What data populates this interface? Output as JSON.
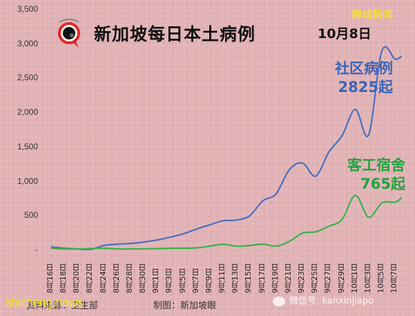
{
  "header": {
    "title": "新加坡每日本土病例",
    "date": "10月8日",
    "brand": "狮城新闻"
  },
  "annotations": {
    "community_name": "社区病例",
    "community_value": "2825起",
    "dorm_name": "客工宿舍",
    "dorm_value": "765起"
  },
  "footer": {
    "source": "资料来源：卫生部",
    "credit": "制图：新加坡眼",
    "watermark_left": "shicheng.news",
    "watermark_right": "微信号: kanxinjiapo"
  },
  "colors": {
    "community": "#4a6fbe",
    "dorm": "#33b44a",
    "background": "#e2b3b6"
  },
  "chart_data": {
    "type": "line",
    "title": "新加坡每日本土病例",
    "subtitle": "10月8日",
    "xlabel": "",
    "ylabel": "",
    "ylim": [
      0,
      3500
    ],
    "yticks": [
      0,
      500,
      1000,
      1500,
      2000,
      2500,
      3000,
      3500
    ],
    "ytick_labels": [
      "-",
      "500",
      "1,000",
      "1,500",
      "2,000",
      "2,500",
      "3,000",
      "3,500"
    ],
    "grid": false,
    "legend": "inline annotations",
    "x_tick_labels": [
      "8月16日",
      "8月18日",
      "8月20日",
      "8月22日",
      "8月24日",
      "8月26日",
      "8月28日",
      "8月30日",
      "9月1日",
      "9月3日",
      "9月5日",
      "9月7日",
      "9月9日",
      "9月11日",
      "9月13日",
      "9月15日",
      "9月17日",
      "9月19日",
      "9月21日",
      "9月23日",
      "9月25日",
      "9月27日",
      "9月29日",
      "10月1日",
      "10月3日",
      "10月5日",
      "10月7日"
    ],
    "x": [
      "8月16日",
      "8月18日",
      "8月20日",
      "8月22日",
      "8月24日",
      "8月26日",
      "8月28日",
      "8月30日",
      "9月1日",
      "9月3日",
      "9月5日",
      "9月7日",
      "9月9日",
      "9月11日",
      "9月13日",
      "9月15日",
      "9月17日",
      "9月19日",
      "9月21日",
      "9月23日",
      "9月25日",
      "9月27日",
      "9月29日",
      "10月1日",
      "10月3日",
      "10月5日",
      "10月7日",
      "10月8日"
    ],
    "series": [
      {
        "name": "社区病例",
        "color": "#4a6fbe",
        "values": [
          50,
          30,
          20,
          15,
          70,
          90,
          100,
          120,
          150,
          190,
          240,
          310,
          370,
          430,
          440,
          500,
          720,
          820,
          1170,
          1270,
          1080,
          1430,
          1670,
          2050,
          1680,
          2900,
          2780,
          2825
        ],
        "last_label": "2825起"
      },
      {
        "name": "客工宿舍",
        "color": "#33b44a",
        "values": [
          30,
          20,
          20,
          25,
          30,
          20,
          20,
          20,
          25,
          30,
          30,
          35,
          60,
          90,
          60,
          70,
          90,
          60,
          130,
          250,
          270,
          350,
          450,
          800,
          480,
          690,
          700,
          765
        ],
        "last_label": "765起"
      }
    ]
  }
}
